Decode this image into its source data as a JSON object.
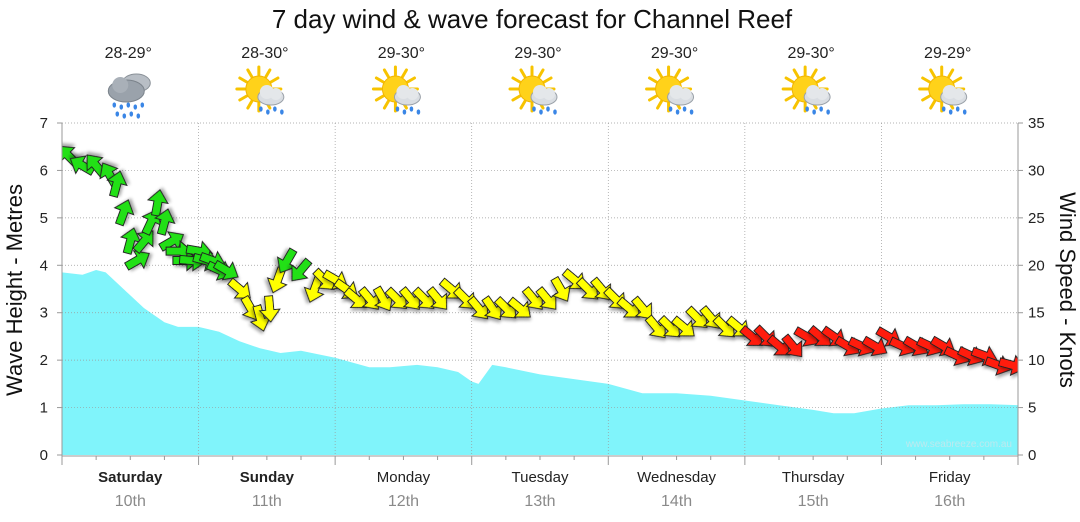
{
  "chart_data": {
    "type": "area",
    "title": "7 day wind & wave forecast for Channel Reef",
    "ylabel_left": "Wave Height - Metres",
    "ylabel_right": "Wind Speed - Knots",
    "ylim_left": [
      0,
      7
    ],
    "ylim_right": [
      0,
      35
    ],
    "left_ticks": [
      "0",
      "1",
      "2",
      "3",
      "4",
      "5",
      "6",
      "7"
    ],
    "right_ticks": [
      "0",
      "5",
      "10",
      "15",
      "20",
      "25",
      "30",
      "35"
    ],
    "credit": "www.seabreeze.com.au",
    "days": [
      {
        "day": "Saturday",
        "date": "10th",
        "bold": true,
        "temp": "28-29°",
        "icon": "rain-cloud-icon"
      },
      {
        "day": "Sunday",
        "date": "11th",
        "bold": true,
        "temp": "28-30°",
        "icon": "sun-shower-icon"
      },
      {
        "day": "Monday",
        "date": "12th",
        "bold": false,
        "temp": "29-30°",
        "icon": "sun-shower-icon"
      },
      {
        "day": "Tuesday",
        "date": "13th",
        "bold": false,
        "temp": "29-30°",
        "icon": "sun-shower-icon"
      },
      {
        "day": "Wednesday",
        "date": "14th",
        "bold": false,
        "temp": "29-30°",
        "icon": "sun-shower-icon"
      },
      {
        "day": "Thursday",
        "date": "15th",
        "bold": false,
        "temp": "29-30°",
        "icon": "sun-shower-icon"
      },
      {
        "day": "Friday",
        "date": "16th",
        "bold": false,
        "temp": "29-29°",
        "icon": "sun-shower-icon"
      }
    ],
    "x_range_days": [
      0,
      7
    ],
    "wave_series": {
      "name": "Wave Height (m)",
      "color": "#80f4fb",
      "x": [
        0,
        0.15,
        0.25,
        0.32,
        0.45,
        0.6,
        0.75,
        0.85,
        1.0,
        1.15,
        1.3,
        1.45,
        1.6,
        1.75,
        2.0,
        2.25,
        2.4,
        2.6,
        2.75,
        2.9,
        3.0,
        3.05,
        3.15,
        3.25,
        3.5,
        3.75,
        4.0,
        4.25,
        4.5,
        4.75,
        5.0,
        5.25,
        5.5,
        5.65,
        5.8,
        6.0,
        6.2,
        6.4,
        6.6,
        6.8,
        7.0
      ],
      "values": [
        3.85,
        3.8,
        3.9,
        3.85,
        3.5,
        3.1,
        2.8,
        2.7,
        2.7,
        2.6,
        2.4,
        2.25,
        2.15,
        2.2,
        2.05,
        1.85,
        1.85,
        1.9,
        1.85,
        1.75,
        1.55,
        1.5,
        1.9,
        1.85,
        1.7,
        1.6,
        1.5,
        1.3,
        1.3,
        1.25,
        1.15,
        1.05,
        0.95,
        0.88,
        0.88,
        0.98,
        1.05,
        1.05,
        1.07,
        1.07,
        1.05
      ]
    },
    "wind_series": {
      "name": "Wind Speed (knots)",
      "unit": "knots",
      "x": [
        0.05,
        0.15,
        0.25,
        0.35,
        0.4,
        0.45,
        0.5,
        0.55,
        0.6,
        0.65,
        0.7,
        0.75,
        0.8,
        0.85,
        0.9,
        0.95,
        1.0,
        1.05,
        1.1,
        1.15,
        1.2,
        1.3,
        1.38,
        1.45,
        1.52,
        1.58,
        1.65,
        1.75,
        1.85,
        1.92,
        2.0,
        2.08,
        2.15,
        2.25,
        2.35,
        2.45,
        2.55,
        2.65,
        2.75,
        2.85,
        2.95,
        3.05,
        3.15,
        3.25,
        3.35,
        3.45,
        3.55,
        3.65,
        3.75,
        3.85,
        3.95,
        4.05,
        4.15,
        4.25,
        4.35,
        4.45,
        4.55,
        4.65,
        4.75,
        4.85,
        4.95,
        5.05,
        5.15,
        5.25,
        5.35,
        5.45,
        5.55,
        5.65,
        5.75,
        5.85,
        5.95,
        6.05,
        6.15,
        6.25,
        6.35,
        6.45,
        6.55,
        6.65,
        6.75,
        6.85,
        6.95
      ],
      "values": [
        31.5,
        30.5,
        30.5,
        29.5,
        28.5,
        25.5,
        22.5,
        20.5,
        22.5,
        24.5,
        26.5,
        24.5,
        22.5,
        21.5,
        20.5,
        20.5,
        21.5,
        20.5,
        20.5,
        19.5,
        19.5,
        17.5,
        15.5,
        14.5,
        15.5,
        18.5,
        20.5,
        19.5,
        17.5,
        18.5,
        18.5,
        17.5,
        16.5,
        16.5,
        16.5,
        16.5,
        16.5,
        16.5,
        16.5,
        17.5,
        16.5,
        15.5,
        15.5,
        15.5,
        15.5,
        16.5,
        16.5,
        17.5,
        18.5,
        17.5,
        17.5,
        16.5,
        15.5,
        15.5,
        13.5,
        13.5,
        13.5,
        14.5,
        14.5,
        13.5,
        13.5,
        12.5,
        12.5,
        11.5,
        11.5,
        12.5,
        12.5,
        12.5,
        11.5,
        11.5,
        11.5,
        12.5,
        11.5,
        11.5,
        11.5,
        11.5,
        10.5,
        10.5,
        10.5,
        9.5,
        9.5
      ],
      "direction_to_deg": [
        315,
        300,
        320,
        330,
        15,
        20,
        15,
        60,
        40,
        25,
        10,
        15,
        60,
        90,
        90,
        95,
        100,
        105,
        110,
        115,
        120,
        130,
        150,
        165,
        175,
        200,
        210,
        220,
        200,
        135,
        120,
        125,
        130,
        140,
        150,
        135,
        140,
        135,
        140,
        130,
        135,
        140,
        145,
        135,
        130,
        140,
        140,
        150,
        130,
        135,
        140,
        135,
        130,
        140,
        140,
        135,
        130,
        135,
        140,
        135,
        130,
        130,
        135,
        130,
        140,
        120,
        130,
        125,
        120,
        115,
        120,
        120,
        115,
        120,
        115,
        120,
        115,
        115,
        110,
        110,
        105
      ],
      "color_scale": [
        {
          "min_knots": 10.01,
          "max_knots": 15,
          "color": "#ffff00"
        },
        {
          "min_knots": 15.01,
          "max_knots": 19,
          "color": "#ffff00"
        },
        {
          "min_knots": 19.01,
          "max_knots": 40,
          "color": "#22e012"
        },
        {
          "min_knots": 0,
          "max_knots": 10,
          "color": "#ff1a0a"
        }
      ]
    }
  }
}
